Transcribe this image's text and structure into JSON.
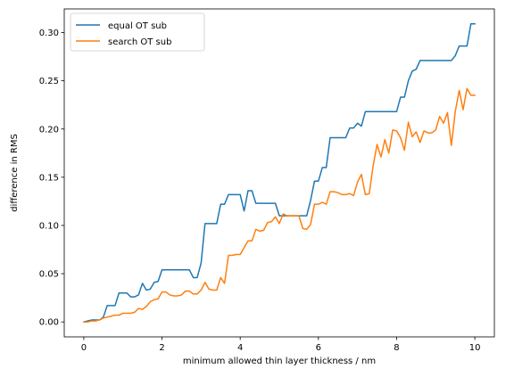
{
  "chart_data": {
    "type": "line",
    "title": "",
    "xlabel": "minimum allowed thin layer thickness / nm",
    "ylabel": "difference in RMS",
    "xlim": [
      -0.5,
      10.5
    ],
    "ylim": [
      -0.0155,
      0.3245
    ],
    "xticks": [
      0,
      2,
      4,
      6,
      8,
      10
    ],
    "yticks": [
      0.0,
      0.05,
      0.1,
      0.15,
      0.2,
      0.25,
      0.3
    ],
    "ytick_labels": [
      "0.00",
      "0.05",
      "0.10",
      "0.15",
      "0.20",
      "0.25",
      "0.30"
    ],
    "grid": false,
    "legend_position": "top-left",
    "series": [
      {
        "name": "equal OT sub",
        "color": "#1f77b4",
        "x": [
          0,
          0.1,
          0.2,
          0.3,
          0.4,
          0.5,
          0.6,
          0.7,
          0.8,
          0.9,
          1.0,
          1.1,
          1.2,
          1.3,
          1.4,
          1.5,
          1.6,
          1.7,
          1.8,
          1.9,
          2.0,
          2.1,
          2.2,
          2.3,
          2.4,
          2.5,
          2.6,
          2.7,
          2.8,
          2.9,
          3.0,
          3.1,
          3.2,
          3.3,
          3.4,
          3.5,
          3.6,
          3.7,
          3.8,
          3.9,
          4.0,
          4.1,
          4.2,
          4.3,
          4.4,
          4.5,
          4.6,
          4.7,
          4.8,
          4.9,
          5.0,
          5.1,
          5.2,
          5.3,
          5.4,
          5.5,
          5.6,
          5.7,
          5.8,
          5.9,
          6.0,
          6.1,
          6.2,
          6.3,
          6.4,
          6.5,
          6.6,
          6.7,
          6.8,
          6.9,
          7.0,
          7.1,
          7.2,
          7.3,
          7.4,
          7.5,
          7.6,
          7.7,
          7.8,
          7.9,
          8.0,
          8.1,
          8.2,
          8.3,
          8.4,
          8.5,
          8.6,
          8.7,
          8.8,
          8.9,
          9.0,
          9.1,
          9.2,
          9.3,
          9.4,
          9.5,
          9.6,
          9.7,
          9.8,
          9.9,
          10.0
        ],
        "y": [
          0.0,
          0.001,
          0.002,
          0.002,
          0.002,
          0.005,
          0.017,
          0.017,
          0.017,
          0.03,
          0.03,
          0.03,
          0.026,
          0.026,
          0.028,
          0.04,
          0.033,
          0.034,
          0.041,
          0.042,
          0.054,
          0.054,
          0.054,
          0.054,
          0.054,
          0.054,
          0.054,
          0.054,
          0.046,
          0.046,
          0.061,
          0.102,
          0.102,
          0.102,
          0.102,
          0.122,
          0.122,
          0.132,
          0.132,
          0.132,
          0.132,
          0.115,
          0.136,
          0.136,
          0.123,
          0.123,
          0.123,
          0.123,
          0.123,
          0.123,
          0.11,
          0.11,
          0.11,
          0.11,
          0.11,
          0.11,
          0.11,
          0.11,
          0.126,
          0.146,
          0.146,
          0.16,
          0.16,
          0.191,
          0.191,
          0.191,
          0.191,
          0.191,
          0.201,
          0.201,
          0.206,
          0.203,
          0.218,
          0.218,
          0.218,
          0.218,
          0.218,
          0.218,
          0.218,
          0.218,
          0.218,
          0.233,
          0.233,
          0.25,
          0.26,
          0.262,
          0.271,
          0.271,
          0.271,
          0.271,
          0.271,
          0.271,
          0.271,
          0.271,
          0.271,
          0.276,
          0.286,
          0.286,
          0.286,
          0.309,
          0.309
        ]
      },
      {
        "name": "search OT sub",
        "color": "#ff7f0e",
        "x": [
          0,
          0.1,
          0.2,
          0.3,
          0.4,
          0.5,
          0.6,
          0.7,
          0.8,
          0.9,
          1.0,
          1.1,
          1.2,
          1.3,
          1.4,
          1.5,
          1.6,
          1.7,
          1.8,
          1.9,
          2.0,
          2.1,
          2.2,
          2.3,
          2.4,
          2.5,
          2.6,
          2.7,
          2.8,
          2.9,
          3.0,
          3.1,
          3.2,
          3.3,
          3.4,
          3.5,
          3.6,
          3.7,
          3.8,
          3.9,
          4.0,
          4.1,
          4.2,
          4.3,
          4.4,
          4.5,
          4.6,
          4.7,
          4.8,
          4.9,
          5.0,
          5.1,
          5.2,
          5.3,
          5.4,
          5.5,
          5.6,
          5.7,
          5.8,
          5.9,
          6.0,
          6.1,
          6.2,
          6.3,
          6.4,
          6.5,
          6.6,
          6.7,
          6.8,
          6.9,
          7.0,
          7.1,
          7.2,
          7.3,
          7.4,
          7.5,
          7.6,
          7.7,
          7.8,
          7.9,
          8.0,
          8.1,
          8.2,
          8.3,
          8.4,
          8.5,
          8.6,
          8.7,
          8.8,
          8.9,
          9.0,
          9.1,
          9.2,
          9.3,
          9.4,
          9.5,
          9.6,
          9.7,
          9.8,
          9.9,
          10.0
        ],
        "y": [
          0.0,
          0.0,
          0.001,
          0.001,
          0.002,
          0.004,
          0.005,
          0.006,
          0.007,
          0.007,
          0.009,
          0.009,
          0.009,
          0.01,
          0.014,
          0.013,
          0.016,
          0.021,
          0.023,
          0.024,
          0.031,
          0.031,
          0.028,
          0.027,
          0.027,
          0.028,
          0.032,
          0.032,
          0.029,
          0.029,
          0.033,
          0.041,
          0.034,
          0.033,
          0.033,
          0.046,
          0.04,
          0.069,
          0.069,
          0.07,
          0.07,
          0.077,
          0.084,
          0.084,
          0.096,
          0.094,
          0.095,
          0.103,
          0.104,
          0.109,
          0.102,
          0.112,
          0.11,
          0.11,
          0.11,
          0.11,
          0.097,
          0.096,
          0.101,
          0.122,
          0.122,
          0.124,
          0.122,
          0.135,
          0.135,
          0.134,
          0.132,
          0.132,
          0.133,
          0.131,
          0.145,
          0.153,
          0.132,
          0.133,
          0.162,
          0.184,
          0.171,
          0.189,
          0.175,
          0.199,
          0.198,
          0.191,
          0.178,
          0.207,
          0.192,
          0.197,
          0.186,
          0.198,
          0.196,
          0.196,
          0.199,
          0.213,
          0.206,
          0.217,
          0.183,
          0.218,
          0.24,
          0.22,
          0.242,
          0.235,
          0.235
        ]
      }
    ]
  }
}
